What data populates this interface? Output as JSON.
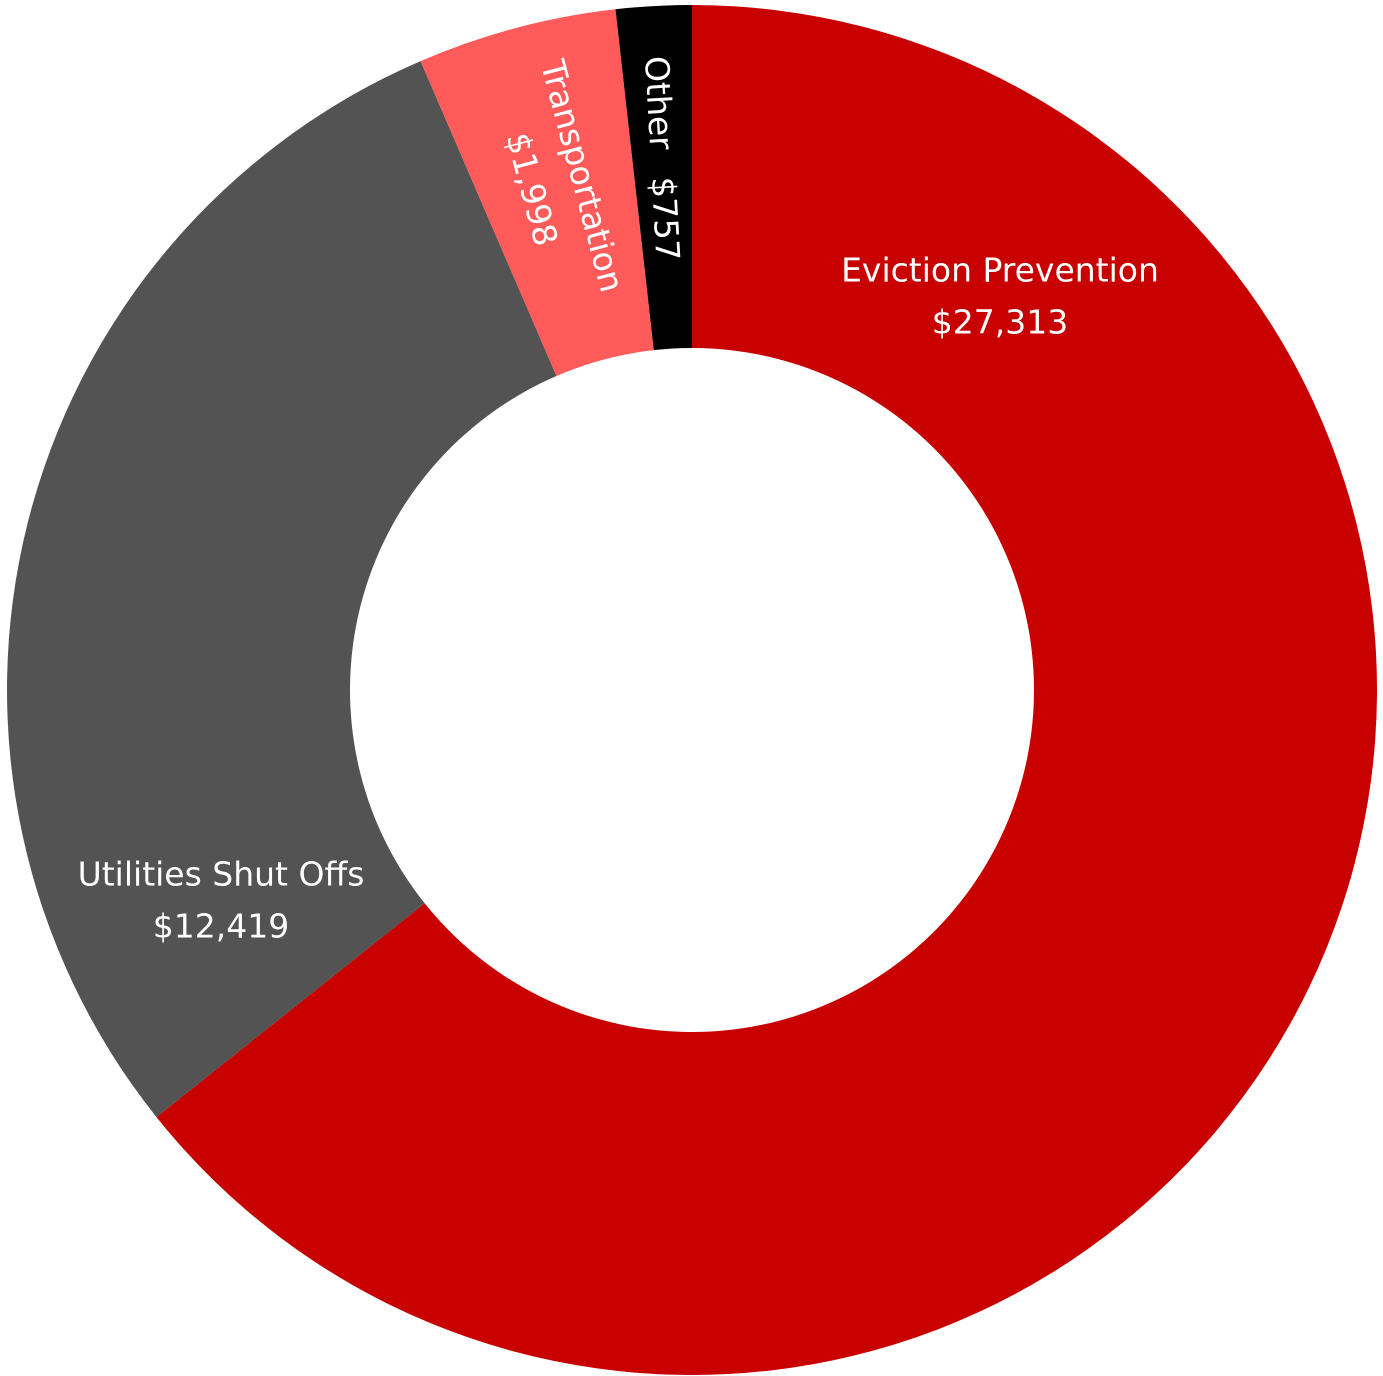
{
  "chart_data": {
    "type": "pie",
    "variant": "donut",
    "title": "",
    "slices": [
      {
        "label": "Eviction Prevention",
        "value": 27313,
        "value_label": "$27,313",
        "color": "#c80000",
        "label_orientation": "horizontal"
      },
      {
        "label": "Utilities Shut Offs",
        "value": 12419,
        "value_label": "$12,419",
        "color": "#535353",
        "label_orientation": "horizontal"
      },
      {
        "label": "Transportation",
        "value": 1998,
        "value_label": "$1,998",
        "color": "#ff5b5b",
        "label_orientation": "rotated"
      },
      {
        "label": "Other",
        "value": 757,
        "value_label": "$757",
        "color": "#000000",
        "label_orientation": "rotated"
      }
    ],
    "start_angle": "12 o'clock",
    "direction": "clockwise",
    "legend": "none"
  }
}
